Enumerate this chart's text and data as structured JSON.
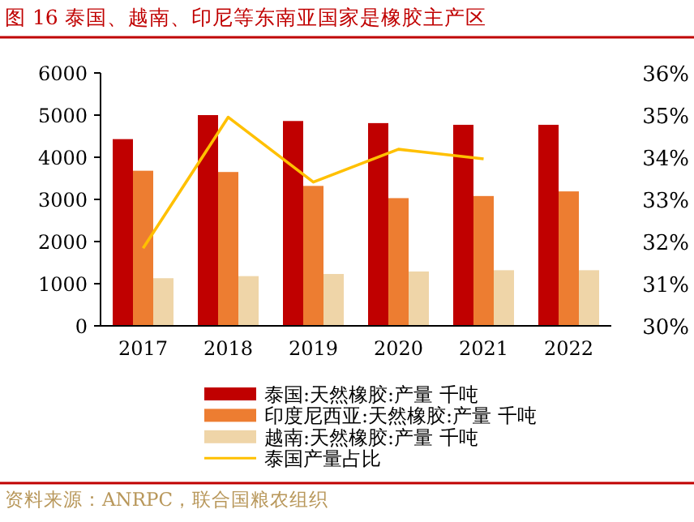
{
  "chart_data": {
    "type": "bar",
    "title": "图 16 泰国、越南、印尼等东南亚国家是橡胶主产区",
    "categories": [
      "2017",
      "2018",
      "2019",
      "2020",
      "2021",
      "2022"
    ],
    "series": [
      {
        "name": "泰国:天然橡胶:产量 千吨",
        "color": "#c00000",
        "values": [
          4430,
          5000,
          4860,
          4810,
          4770,
          4770
        ]
      },
      {
        "name": "印度尼西亚:天然橡胶:产量 千吨",
        "color": "#ed7d31",
        "values": [
          3680,
          3650,
          3320,
          3030,
          3080,
          3190
        ]
      },
      {
        "name": "越南:天然橡胶:产量 千吨",
        "color": "#efd5a8",
        "values": [
          1130,
          1180,
          1230,
          1290,
          1320,
          1320
        ]
      },
      {
        "name": "泰国产量占比",
        "type": "line",
        "axis": "y2",
        "color": "#ffc000",
        "values": [
          31.84,
          34.95,
          33.41,
          34.19,
          33.96,
          null
        ]
      }
    ],
    "ylim": [
      0,
      6000
    ],
    "yticks": [
      0,
      1000,
      2000,
      3000,
      4000,
      5000,
      6000
    ],
    "y2lim": [
      30,
      36
    ],
    "y2ticks": [
      {
        "value": 30,
        "label": "30%"
      },
      {
        "value": 31,
        "label": "31%"
      },
      {
        "value": 32,
        "label": "32%"
      },
      {
        "value": 33,
        "label": "33%"
      },
      {
        "value": 34,
        "label": "34%"
      },
      {
        "value": 35,
        "label": "35%"
      },
      {
        "value": 36,
        "label": "36%"
      }
    ],
    "legend": "bottom",
    "grid": false,
    "annotations": [
      "资料来源：ANRPC，联合国粮农组织"
    ]
  }
}
